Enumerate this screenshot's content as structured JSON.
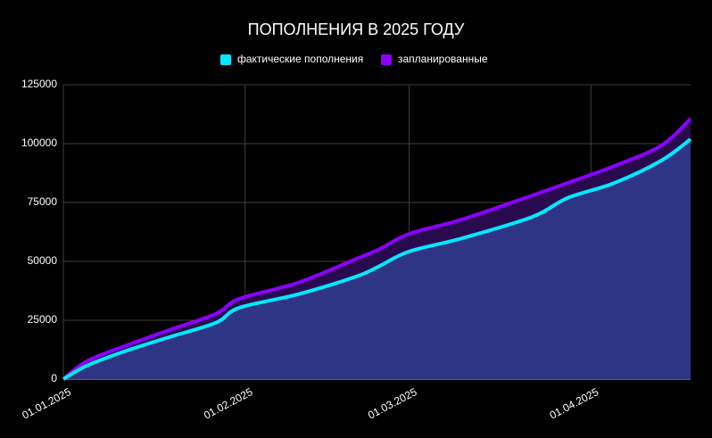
{
  "chart_data": {
    "type": "area",
    "title": "ПОПОЛНЕНИЯ В 2025 ГОДУ",
    "x": [
      "01.01.2025",
      "05.01.2025",
      "11.01.2025",
      "19.01.2025",
      "27.01.2025",
      "31.01.2025",
      "10.02.2025",
      "20.02.2025",
      "24.02.2025",
      "01.03.2025",
      "10.03.2025",
      "22.03.2025",
      "28.03.2025",
      "05.04.2025",
      "13.04.2025",
      "18.04.2025"
    ],
    "series": [
      {
        "name": "фактические пополнения",
        "color": "#00eaff",
        "fill_color": "#2e3584",
        "values": [
          0,
          5700,
          11400,
          17800,
          23900,
          30300,
          36000,
          43600,
          48100,
          54200,
          59800,
          68900,
          76900,
          83300,
          92800,
          101900
        ]
      },
      {
        "name": "запланированные",
        "color": "#8c00ff",
        "fill_color": "#2a0a4e",
        "values": [
          0,
          7600,
          13600,
          20800,
          27700,
          34100,
          40900,
          51100,
          55300,
          61700,
          67800,
          78000,
          83300,
          90500,
          99200,
          110600
        ]
      }
    ],
    "xlim": [
      "01.01.2025",
      "18.04.2025"
    ],
    "xticks": [
      "01.01.2025",
      "01.02.2025",
      "01.03.2025",
      "01.04.2025"
    ],
    "ylim": [
      0,
      125000
    ],
    "yticks": [
      0,
      25000,
      50000,
      75000,
      100000,
      125000
    ],
    "grid": true,
    "legend": "top"
  }
}
